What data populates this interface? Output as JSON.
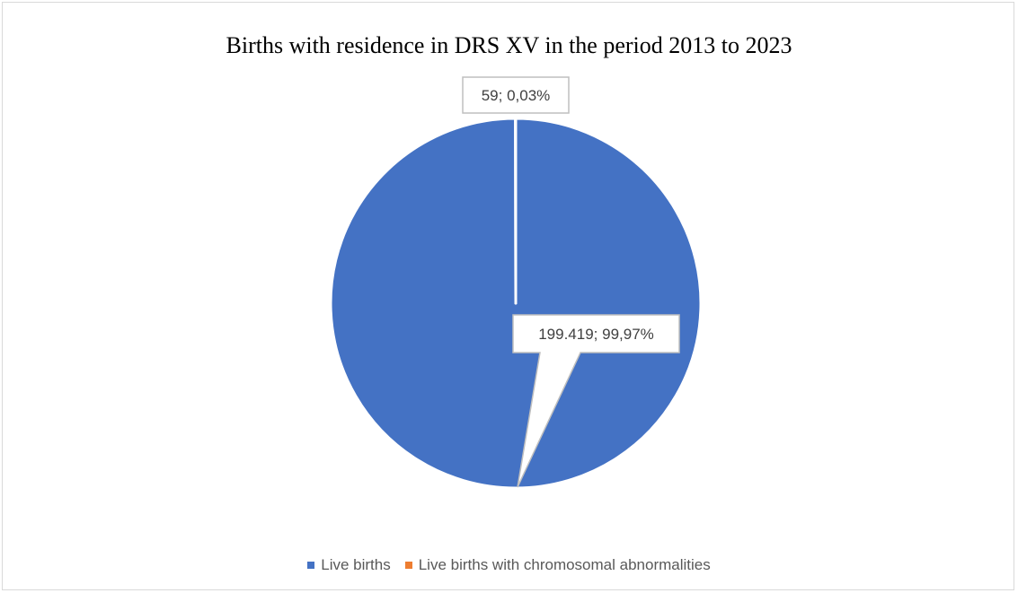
{
  "chart_data": {
    "type": "pie",
    "title": "Births with residence in DRS XV in the period 2013 to 2023",
    "slices": [
      {
        "label": "Live births",
        "value": 199419,
        "percent": 99.97,
        "data_label": "199.419; 99,97%",
        "color": "#4472C4"
      },
      {
        "label": "Live births with chromosomal abnormalities",
        "value": 59,
        "percent": 0.03,
        "data_label": "59; 0,03%",
        "color": "#ED7D31"
      }
    ],
    "legend_position": "bottom"
  }
}
